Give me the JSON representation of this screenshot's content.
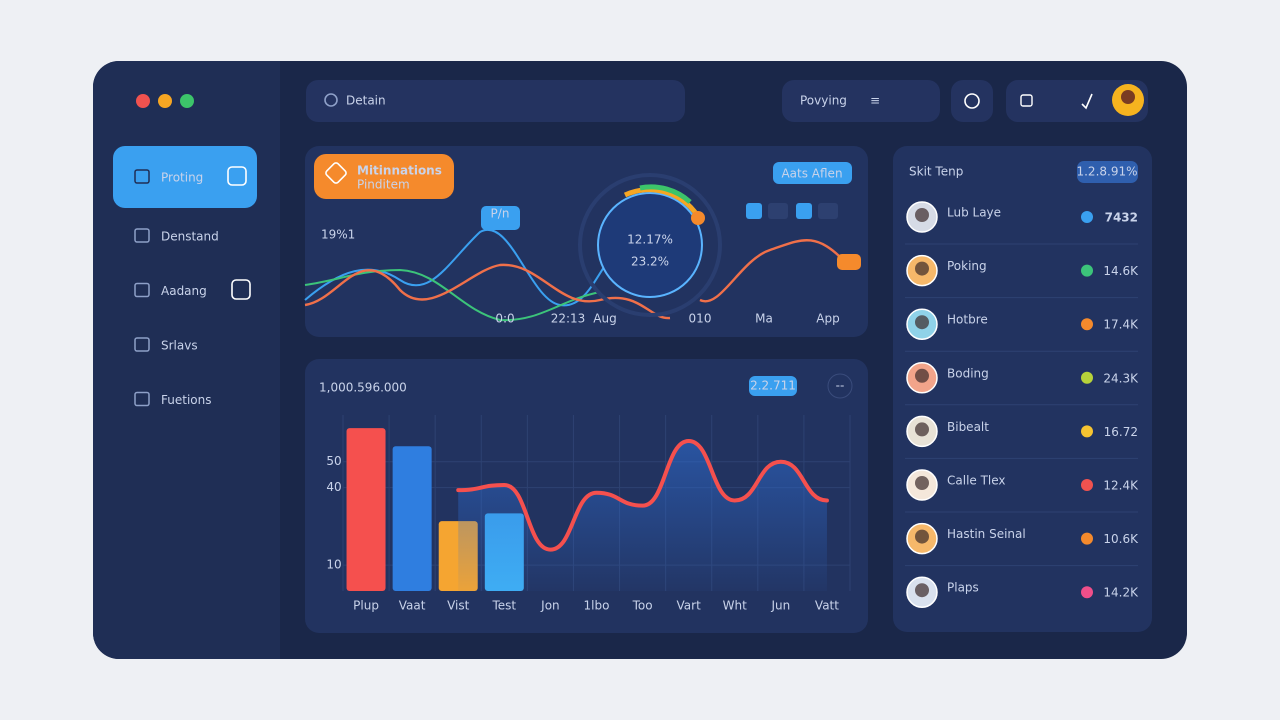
{
  "sidebar": {
    "items": [
      "Proting",
      "Denstand",
      "Aadang",
      "Srlavs",
      "Fuetions"
    ]
  },
  "header": {
    "search": "Detain",
    "pill": "Povying"
  },
  "overview": {
    "badge_title": "Mitinnations",
    "badge_sub": "Pinditem",
    "big_value": "19%1",
    "button": "Aats Aflen",
    "tooltip": "P/n",
    "gauge_main": "12.17%",
    "gauge_sub": "23.2%",
    "x_labels": [
      "0:0",
      "22:13",
      "Aug",
      "010",
      "Ma",
      "App"
    ]
  },
  "chart_data": {
    "type": "bar",
    "title": "1,000.596.000",
    "pill": "2.2.711",
    "more": "--",
    "categories": [
      "Plup",
      "Vaat",
      "Vist",
      "Test",
      "Jon",
      "1lbo",
      "Too",
      "Vart",
      "Wht",
      "Jun",
      "Vatt"
    ],
    "series": [
      {
        "name": "bars",
        "type": "bar",
        "colors": [
          "#f5504e",
          "#2f7ee0",
          "#f5a531",
          "#3fb0f5"
        ],
        "values": [
          63,
          56,
          27,
          30,
          null,
          null,
          null,
          null,
          null,
          null,
          null
        ]
      },
      {
        "name": "line",
        "type": "line",
        "color": "#f5504e",
        "values": [
          null,
          null,
          39,
          41,
          16,
          38,
          33,
          58,
          35,
          50,
          35
        ]
      }
    ],
    "ylim": [
      0,
      70
    ],
    "yticks": [
      50,
      40,
      10
    ],
    "grid": true
  },
  "leaderboard": {
    "title": "Skit Tenp",
    "pill": "1.2.8.91%",
    "rows": [
      {
        "name": "Lub Laye",
        "value": "7432"
      },
      {
        "name": "Poking",
        "value": "14.6K"
      },
      {
        "name": "Hotbre",
        "value": "17.4K"
      },
      {
        "name": "Boding",
        "value": "24.3K"
      },
      {
        "name": "Bibealt",
        "value": "16.72"
      },
      {
        "name": "Calle Tlex",
        "value": "12.4K"
      },
      {
        "name": "Hastin Seinal",
        "value": "10.6K"
      },
      {
        "name": "Plaps",
        "value": "14.2K"
      }
    ]
  }
}
